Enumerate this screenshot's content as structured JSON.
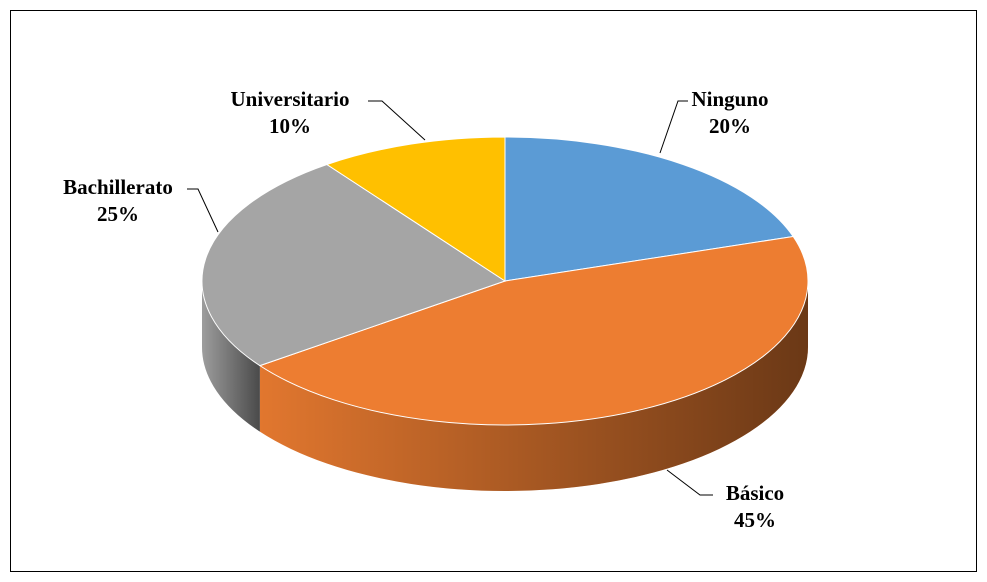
{
  "chart_data": {
    "type": "pie",
    "categories": [
      "Ninguno",
      "Básico",
      "Bachillerato",
      "Universitario"
    ],
    "values": [
      20,
      45,
      25,
      10
    ],
    "value_labels": [
      "20%",
      "45%",
      "25%",
      "10%"
    ],
    "colors": [
      "#5b9bd5",
      "#ed7d31",
      "#a5a5a5",
      "#ffc000"
    ]
  }
}
